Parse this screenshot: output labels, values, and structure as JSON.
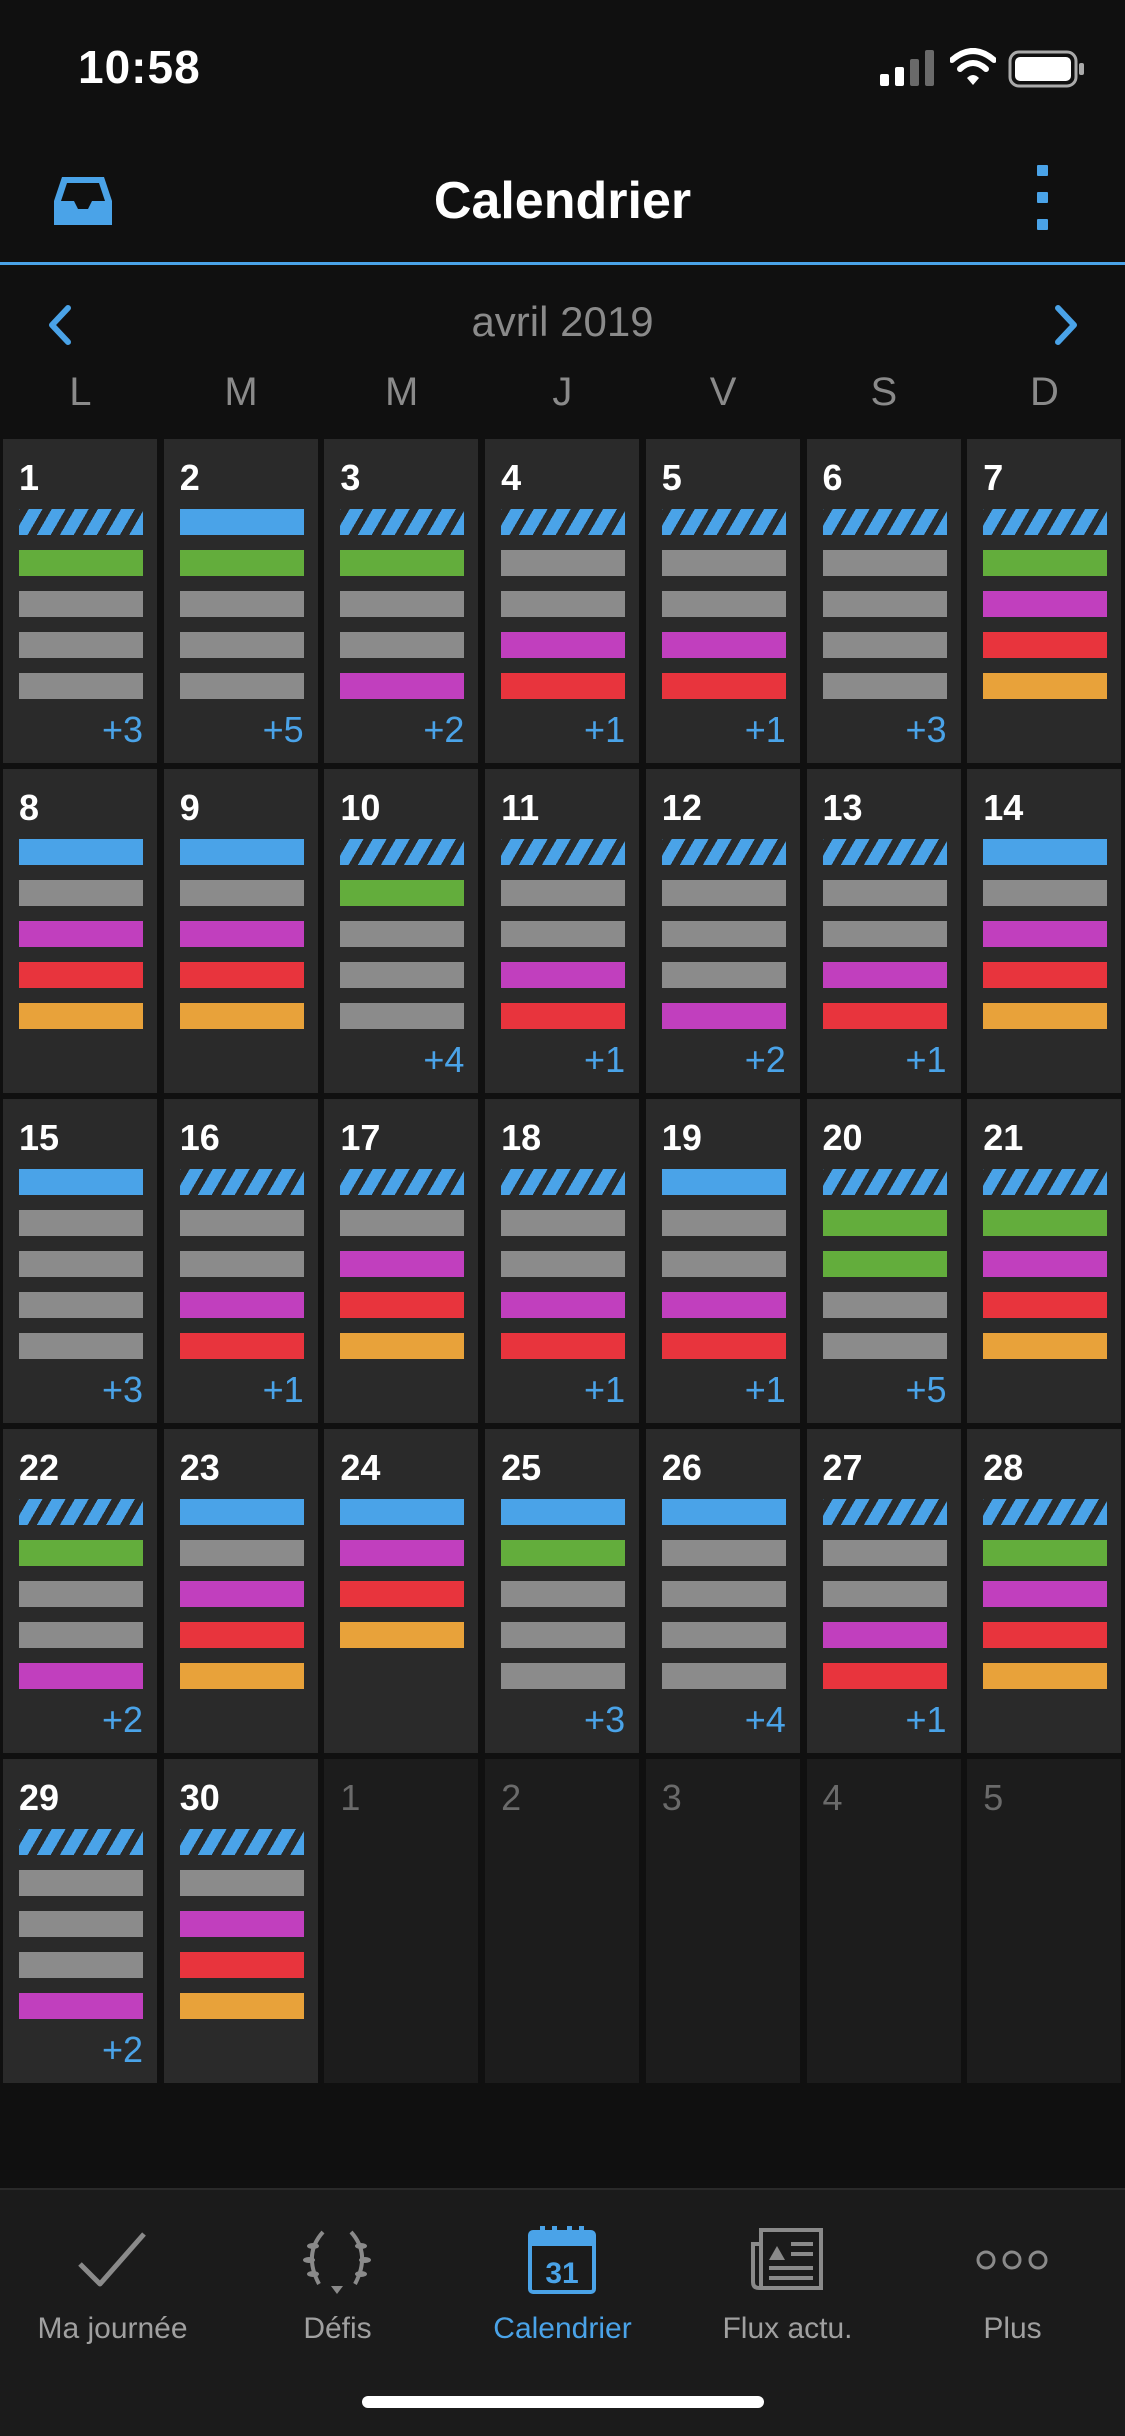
{
  "status_bar": {
    "time": "10:58",
    "signal_icon": "signal-icon",
    "wifi_icon": "wifi-icon",
    "battery_icon": "battery-icon"
  },
  "header": {
    "title": "Calendrier",
    "left_icon": "inbox-icon",
    "right_icon": "vertical-dots-icon"
  },
  "calendar": {
    "month_label": "avril 2019",
    "weekdays": [
      "L",
      "M",
      "M",
      "J",
      "V",
      "S",
      "D"
    ],
    "colors": {
      "blue": "#4aa3e8",
      "green": "#63ad3c",
      "gray": "#8b8b8b",
      "purple": "#c13fbe",
      "red": "#e8343d",
      "orange": "#e8a23a"
    },
    "weeks": [
      [
        {
          "day": "1",
          "bars": [
            "striped",
            "green",
            "gray",
            "gray",
            "gray"
          ],
          "more": "+3"
        },
        {
          "day": "2",
          "bars": [
            "blue",
            "green",
            "gray",
            "gray",
            "gray"
          ],
          "more": "+5"
        },
        {
          "day": "3",
          "bars": [
            "striped",
            "green",
            "gray",
            "gray",
            "purple"
          ],
          "more": "+2"
        },
        {
          "day": "4",
          "bars": [
            "striped",
            "gray",
            "gray",
            "purple",
            "red"
          ],
          "more": "+1"
        },
        {
          "day": "5",
          "bars": [
            "striped",
            "gray",
            "gray",
            "purple",
            "red"
          ],
          "more": "+1"
        },
        {
          "day": "6",
          "bars": [
            "striped",
            "gray",
            "gray",
            "gray",
            "gray"
          ],
          "more": "+3"
        },
        {
          "day": "7",
          "bars": [
            "striped",
            "green",
            "purple",
            "red",
            "orange"
          ],
          "more": ""
        }
      ],
      [
        {
          "day": "8",
          "bars": [
            "blue",
            "gray",
            "purple",
            "red",
            "orange"
          ],
          "more": ""
        },
        {
          "day": "9",
          "bars": [
            "blue",
            "gray",
            "purple",
            "red",
            "orange"
          ],
          "more": ""
        },
        {
          "day": "10",
          "bars": [
            "striped",
            "green",
            "gray",
            "gray",
            "gray"
          ],
          "more": "+4"
        },
        {
          "day": "11",
          "bars": [
            "striped",
            "gray",
            "gray",
            "purple",
            "red"
          ],
          "more": "+1"
        },
        {
          "day": "12",
          "bars": [
            "striped",
            "gray",
            "gray",
            "gray",
            "purple"
          ],
          "more": "+2"
        },
        {
          "day": "13",
          "bars": [
            "striped",
            "gray",
            "gray",
            "purple",
            "red"
          ],
          "more": "+1"
        },
        {
          "day": "14",
          "bars": [
            "blue",
            "gray",
            "purple",
            "red",
            "orange"
          ],
          "more": ""
        }
      ],
      [
        {
          "day": "15",
          "bars": [
            "blue",
            "gray",
            "gray",
            "gray",
            "gray"
          ],
          "more": "+3"
        },
        {
          "day": "16",
          "bars": [
            "striped",
            "gray",
            "gray",
            "purple",
            "red"
          ],
          "more": "+1"
        },
        {
          "day": "17",
          "bars": [
            "striped",
            "gray",
            "purple",
            "red",
            "orange"
          ],
          "more": ""
        },
        {
          "day": "18",
          "bars": [
            "striped",
            "gray",
            "gray",
            "purple",
            "red"
          ],
          "more": "+1"
        },
        {
          "day": "19",
          "bars": [
            "blue",
            "gray",
            "gray",
            "purple",
            "red"
          ],
          "more": "+1"
        },
        {
          "day": "20",
          "bars": [
            "striped",
            "green",
            "green",
            "gray",
            "gray"
          ],
          "more": "+5"
        },
        {
          "day": "21",
          "bars": [
            "striped",
            "green",
            "purple",
            "red",
            "orange"
          ],
          "more": ""
        }
      ],
      [
        {
          "day": "22",
          "bars": [
            "striped",
            "green",
            "gray",
            "gray",
            "purple"
          ],
          "more": "+2"
        },
        {
          "day": "23",
          "bars": [
            "blue",
            "gray",
            "purple",
            "red",
            "orange"
          ],
          "more": ""
        },
        {
          "day": "24",
          "bars": [
            "blue",
            "purple",
            "red",
            "orange"
          ],
          "more": ""
        },
        {
          "day": "25",
          "bars": [
            "blue",
            "green",
            "gray",
            "gray",
            "gray"
          ],
          "more": "+3"
        },
        {
          "day": "26",
          "bars": [
            "blue",
            "gray",
            "gray",
            "gray",
            "gray"
          ],
          "more": "+4"
        },
        {
          "day": "27",
          "bars": [
            "striped",
            "gray",
            "gray",
            "purple",
            "red"
          ],
          "more": "+1"
        },
        {
          "day": "28",
          "bars": [
            "striped",
            "green",
            "purple",
            "red",
            "orange"
          ],
          "more": ""
        }
      ],
      [
        {
          "day": "29",
          "bars": [
            "striped",
            "gray",
            "gray",
            "gray",
            "purple"
          ],
          "more": "+2"
        },
        {
          "day": "30",
          "bars": [
            "striped",
            "gray",
            "purple",
            "red",
            "orange"
          ],
          "more": ""
        },
        {
          "day": "1",
          "bars": [],
          "more": "",
          "outside": true
        },
        {
          "day": "2",
          "bars": [],
          "more": "",
          "outside": true
        },
        {
          "day": "3",
          "bars": [],
          "more": "",
          "outside": true
        },
        {
          "day": "4",
          "bars": [],
          "more": "",
          "outside": true
        },
        {
          "day": "5",
          "bars": [],
          "more": "",
          "outside": true
        }
      ]
    ]
  },
  "tab_bar": {
    "tabs": [
      {
        "label": "Ma journée",
        "icon": "checkmark-icon",
        "active": false
      },
      {
        "label": "Défis",
        "icon": "laurel-wreath-icon",
        "active": false
      },
      {
        "label": "Calendrier",
        "icon": "calendar-31-icon",
        "active": true,
        "icon_text": "31"
      },
      {
        "label": "Flux actu.",
        "icon": "newspaper-icon",
        "active": false
      },
      {
        "label": "Plus",
        "icon": "more-dots-icon",
        "active": false
      }
    ]
  }
}
